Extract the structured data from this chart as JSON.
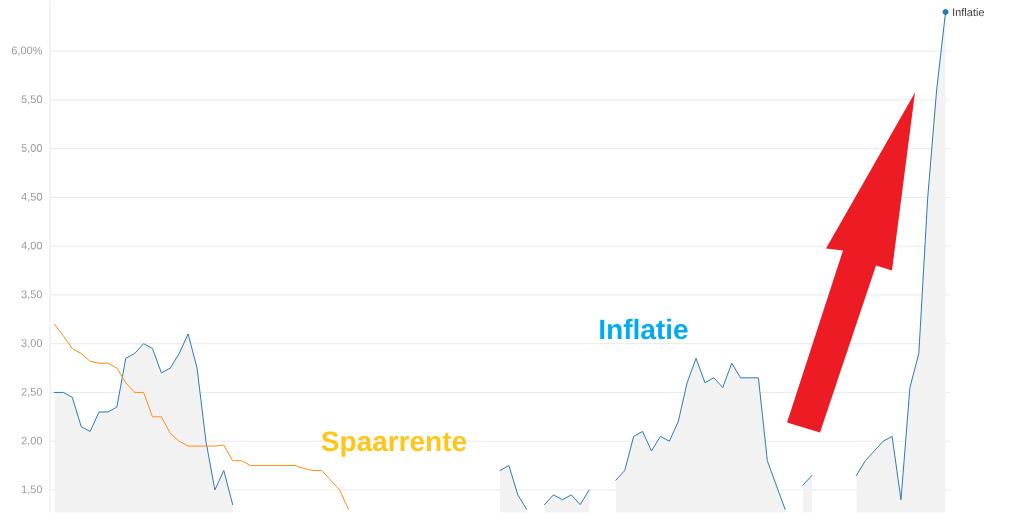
{
  "chart_data": {
    "type": "area",
    "categories": [
      null,
      null,
      null,
      null,
      null,
      null,
      null,
      null,
      null,
      null,
      null,
      null,
      null,
      null,
      null,
      null,
      null,
      null,
      null,
      null,
      null,
      null,
      null,
      null,
      null,
      null,
      null,
      null,
      null,
      null,
      null,
      null,
      null,
      null,
      null,
      null,
      null,
      null,
      null,
      null,
      null,
      null,
      null,
      null,
      null,
      null,
      null,
      null,
      null,
      null,
      null,
      null,
      null,
      null,
      null,
      null,
      null,
      null,
      null,
      null,
      null,
      null,
      null,
      null,
      null,
      null,
      null,
      null,
      null,
      null,
      null,
      null,
      null,
      null,
      null,
      null,
      null,
      null,
      null,
      null,
      null,
      null,
      null,
      null,
      null,
      null,
      null,
      null,
      null,
      null,
      null,
      null,
      null,
      null,
      null,
      null,
      null,
      null,
      null,
      null,
      null
    ],
    "series": [
      {
        "name": "Inflatie",
        "color": "#2a7ab8",
        "values": [
          2.5,
          2.5,
          2.45,
          2.15,
          2.1,
          2.3,
          2.3,
          2.35,
          2.85,
          2.9,
          3.0,
          2.95,
          2.7,
          2.75,
          2.9,
          3.1,
          2.75,
          2.0,
          1.5,
          1.7,
          1.35,
          null,
          null,
          null,
          null,
          null,
          null,
          null,
          null,
          null,
          null,
          null,
          null,
          null,
          null,
          null,
          null,
          null,
          null,
          null,
          null,
          null,
          null,
          null,
          null,
          null,
          null,
          null,
          null,
          null,
          1.7,
          1.75,
          1.45,
          1.3,
          null,
          1.35,
          1.45,
          1.4,
          1.45,
          1.35,
          1.5,
          null,
          null,
          1.6,
          1.7,
          2.05,
          2.1,
          1.9,
          2.05,
          2.0,
          2.2,
          2.6,
          2.85,
          2.6,
          2.65,
          2.55,
          2.8,
          2.65,
          2.65,
          2.65,
          1.8,
          1.55,
          1.3,
          null,
          1.55,
          1.65,
          null,
          null,
          null,
          null,
          1.65,
          1.8,
          1.9,
          2.0,
          2.05,
          1.4,
          2.55,
          2.9,
          4.5,
          5.6,
          6.4
        ]
      },
      {
        "name": "Spaarrente",
        "type": "line",
        "color": "#ff8c1a",
        "values": [
          3.2,
          3.08,
          2.95,
          2.9,
          2.82,
          2.8,
          2.8,
          2.75,
          2.6,
          2.5,
          2.5,
          2.25,
          2.25,
          2.08,
          2.0,
          1.95,
          1.95,
          1.95,
          1.95,
          1.96,
          1.8,
          1.8,
          1.75,
          1.75,
          1.75,
          1.75,
          1.75,
          1.75,
          1.72,
          1.7,
          1.7,
          1.6,
          1.5,
          1.3,
          null,
          null,
          null,
          null,
          null,
          null,
          null,
          null,
          null,
          null,
          null,
          null,
          null,
          null,
          null,
          null,
          null,
          null,
          null,
          null,
          null,
          null,
          null,
          null,
          null,
          null,
          null,
          null,
          null,
          null,
          null,
          null,
          null,
          null,
          null,
          null,
          null,
          null,
          null,
          null,
          null,
          null,
          null,
          null,
          null,
          null,
          null,
          null,
          null,
          null,
          null,
          null,
          null,
          null,
          null,
          null,
          null,
          null,
          null,
          null,
          null,
          null,
          null,
          null,
          null,
          null,
          null
        ]
      }
    ],
    "ylim": [
      1.27,
      6.52
    ],
    "yticks": [
      {
        "value": 6.0,
        "label": "6,00%"
      },
      {
        "value": 5.5,
        "label": "5,50"
      },
      {
        "value": 5.0,
        "label": "5,00"
      },
      {
        "value": 4.5,
        "label": "4,50"
      },
      {
        "value": 4.0,
        "label": "4,00"
      },
      {
        "value": 3.5,
        "label": "3,50"
      },
      {
        "value": 3.0,
        "label": "3,00"
      },
      {
        "value": 2.5,
        "label": "2,50"
      },
      {
        "value": 2.0,
        "label": "2,00"
      },
      {
        "value": 1.5,
        "label": "1,50"
      }
    ],
    "grid": "y",
    "tick_labels": "y",
    "annotations": [
      "Inflatie"
    ]
  }
}
